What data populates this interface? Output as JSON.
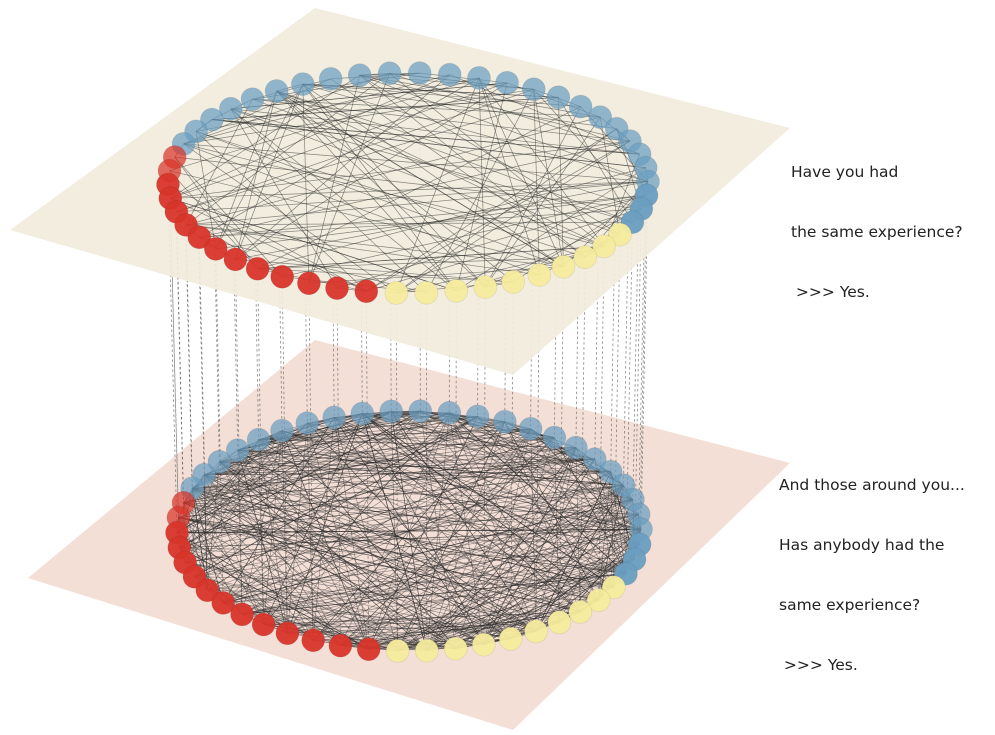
{
  "layers": [
    {
      "id": "personal",
      "caption_lines": [
        "Have you had",
        "the same experience?",
        " >>> Yes."
      ],
      "plane_color": "#f1ebdc",
      "node_counts": {
        "red": 14,
        "yellow": 10,
        "blue": 26
      },
      "edge_density": "sparse"
    },
    {
      "id": "social",
      "caption_lines": [
        "And those around you...",
        "Has anybody had the",
        "same experience?",
        " >>> Yes."
      ],
      "plane_color": "#f3dfd6",
      "node_counts": {
        "red": 14,
        "yellow": 10,
        "blue": 26
      },
      "edge_density": "dense"
    }
  ],
  "node_colors": {
    "red": "#d8352a",
    "yellow": "#f6ec9d",
    "blue": "#6a9ec1"
  },
  "interlayer_links": "dashed"
}
